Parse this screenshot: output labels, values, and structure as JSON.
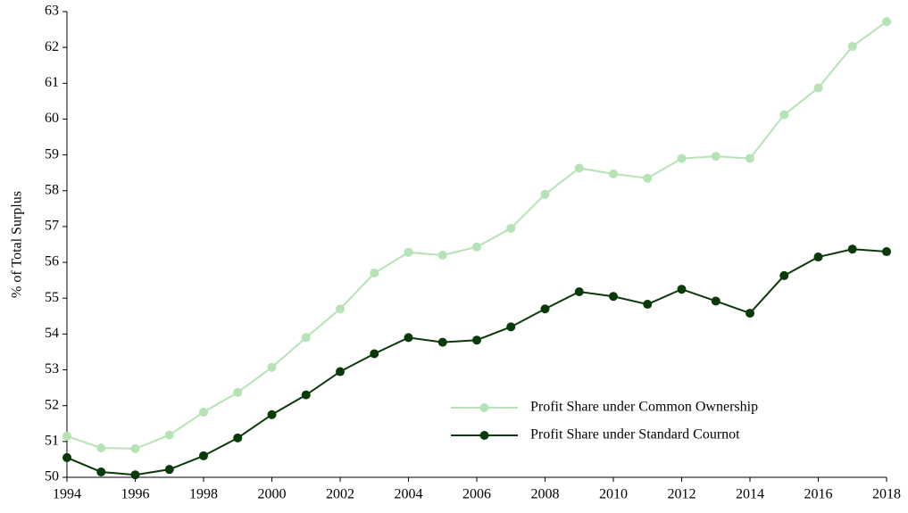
{
  "chart_data": {
    "type": "line",
    "y_label": "% of Total Surplus",
    "x": [
      1994,
      1995,
      1996,
      1997,
      1998,
      1999,
      2000,
      2001,
      2002,
      2003,
      2004,
      2005,
      2006,
      2007,
      2008,
      2009,
      2010,
      2011,
      2012,
      2013,
      2014,
      2015,
      2016,
      2017,
      2018
    ],
    "series": [
      {
        "name": "Profit Share under Common Ownership",
        "color": "#b5e3b5",
        "values": [
          51.15,
          50.82,
          50.8,
          51.18,
          51.82,
          52.37,
          53.07,
          53.9,
          54.7,
          55.7,
          56.28,
          56.2,
          56.43,
          56.95,
          57.9,
          58.63,
          58.47,
          58.35,
          58.9,
          58.96,
          58.9,
          60.12,
          60.87,
          62.03,
          62.72
        ]
      },
      {
        "name": "Profit Share under Standard Cournot",
        "color": "#0a3a0a",
        "values": [
          50.55,
          50.15,
          50.07,
          50.22,
          50.6,
          51.1,
          51.75,
          52.3,
          52.95,
          53.45,
          53.9,
          53.77,
          53.83,
          54.2,
          54.7,
          55.18,
          55.05,
          54.83,
          55.25,
          54.92,
          54.58,
          55.63,
          56.15,
          56.37,
          56.3
        ]
      }
    ],
    "xlim": [
      1994,
      2018
    ],
    "xticks": [
      1994,
      1996,
      1998,
      2000,
      2002,
      2004,
      2006,
      2008,
      2010,
      2012,
      2014,
      2016,
      2018
    ],
    "ylim": [
      50,
      63
    ],
    "yticks": [
      50,
      51,
      52,
      53,
      54,
      55,
      56,
      57,
      58,
      59,
      60,
      61,
      62,
      63
    ],
    "grid": false,
    "legend": "lower-right"
  }
}
